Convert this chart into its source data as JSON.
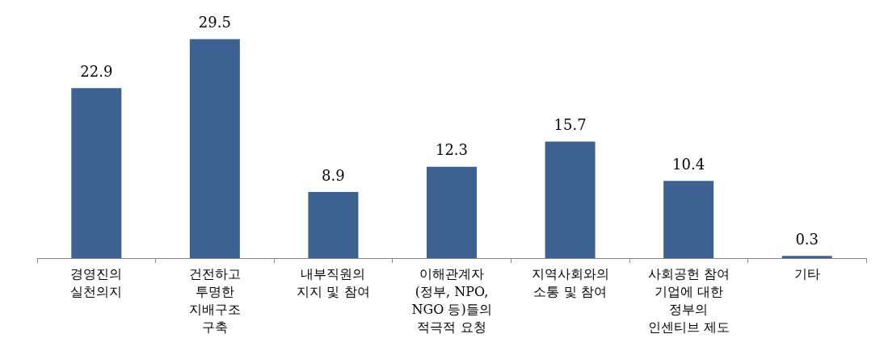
{
  "chart_data": {
    "type": "bar",
    "categories": [
      "경영진의\n실천의지",
      "건전하고\n투명한\n지배구조\n구축",
      "내부직원의\n지지 및 참여",
      "이해관계자\n(정부, NPO,\nNGO 등)들의\n적극적 요청",
      "지역사회와의\n소통 및 참여",
      "사회공헌 참여\n기업에 대한\n정부의\n인센티브 제도",
      "기타"
    ],
    "values": [
      22.9,
      29.5,
      8.9,
      12.3,
      15.7,
      10.4,
      0.3
    ],
    "color": "#3d6191",
    "data_labels": true
  }
}
